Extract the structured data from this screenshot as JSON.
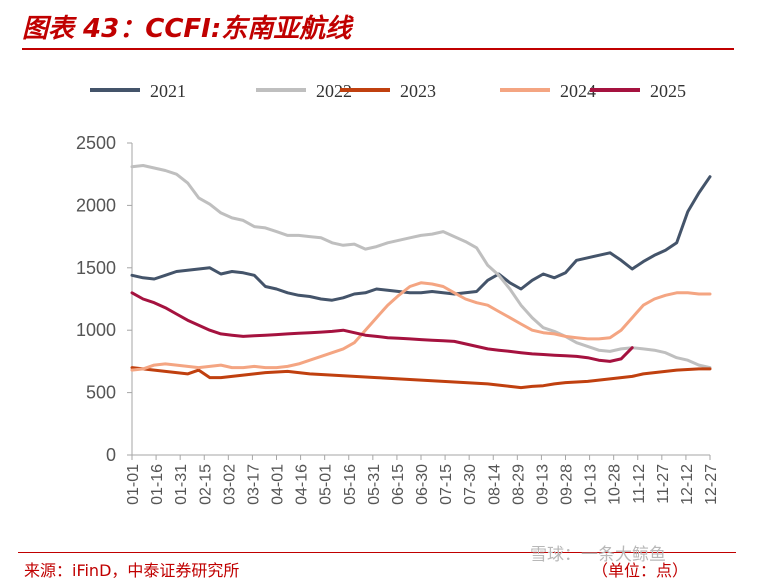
{
  "title": "图表 43：CCFI:东南亚航线",
  "source": "来源：iFinD，中泰证券研究所",
  "unit": "（单位：点）",
  "watermark": "雪球：一条大鲸鱼",
  "chart_data": {
    "type": "line",
    "title": "图表 43：CCFI:东南亚航线",
    "xlabel": "",
    "ylabel": "",
    "ylim": [
      0,
      2500
    ],
    "yticks": [
      0,
      500,
      1000,
      1500,
      2000,
      2500
    ],
    "x_range": [
      0,
      52
    ],
    "x_tick_labels": [
      "01-01",
      "01-16",
      "01-31",
      "02-15",
      "03-02",
      "03-17",
      "04-01",
      "04-16",
      "05-01",
      "05-16",
      "05-31",
      "06-15",
      "06-30",
      "07-15",
      "07-30",
      "08-14",
      "08-29",
      "09-13",
      "09-28",
      "10-13",
      "10-28",
      "11-12",
      "11-27",
      "12-12",
      "12-27"
    ],
    "legend_position": "top",
    "grid": false,
    "series": [
      {
        "name": "2021",
        "color": "#44546a",
        "x": [
          0,
          1,
          2,
          3,
          4,
          5,
          6,
          7,
          8,
          9,
          10,
          11,
          12,
          13,
          14,
          15,
          16,
          17,
          18,
          19,
          20,
          21,
          22,
          23,
          24,
          25,
          26,
          27,
          28,
          29,
          30,
          31,
          32,
          33,
          34,
          35,
          36,
          37,
          38,
          39,
          40,
          41,
          42,
          43,
          44,
          45,
          46,
          47,
          48,
          49,
          50,
          51,
          52
        ],
        "values": [
          1440,
          1420,
          1410,
          1440,
          1470,
          1480,
          1490,
          1500,
          1450,
          1470,
          1460,
          1440,
          1350,
          1330,
          1300,
          1280,
          1270,
          1250,
          1240,
          1260,
          1290,
          1300,
          1330,
          1320,
          1310,
          1300,
          1300,
          1310,
          1300,
          1290,
          1300,
          1310,
          1400,
          1450,
          1380,
          1330,
          1400,
          1450,
          1420,
          1460,
          1560,
          1580,
          1600,
          1620,
          1560,
          1490,
          1550,
          1600,
          1640,
          1700,
          1950,
          2100,
          2230
        ]
      },
      {
        "name": "2022",
        "color": "#bfbfbf",
        "x": [
          0,
          1,
          2,
          3,
          4,
          5,
          6,
          7,
          8,
          9,
          10,
          11,
          12,
          13,
          14,
          15,
          16,
          17,
          18,
          19,
          20,
          21,
          22,
          23,
          24,
          25,
          26,
          27,
          28,
          29,
          30,
          31,
          32,
          33,
          34,
          35,
          36,
          37,
          38,
          39,
          40,
          41,
          42,
          43,
          44,
          45,
          46,
          47,
          48,
          49,
          50,
          51,
          52
        ],
        "values": [
          2310,
          2320,
          2300,
          2280,
          2250,
          2180,
          2060,
          2010,
          1940,
          1900,
          1880,
          1830,
          1820,
          1790,
          1760,
          1760,
          1750,
          1740,
          1700,
          1680,
          1690,
          1650,
          1670,
          1700,
          1720,
          1740,
          1760,
          1770,
          1790,
          1750,
          1710,
          1660,
          1520,
          1440,
          1330,
          1200,
          1100,
          1020,
          990,
          950,
          900,
          870,
          840,
          830,
          850,
          860,
          850,
          840,
          820,
          780,
          760,
          720,
          700
        ]
      },
      {
        "name": "2023",
        "color": "#c0400f",
        "x": [
          0,
          1,
          2,
          3,
          4,
          5,
          6,
          7,
          8,
          9,
          10,
          11,
          12,
          13,
          14,
          15,
          16,
          17,
          18,
          19,
          20,
          21,
          22,
          23,
          24,
          25,
          26,
          27,
          28,
          29,
          30,
          31,
          32,
          33,
          34,
          35,
          36,
          37,
          38,
          39,
          40,
          41,
          42,
          43,
          44,
          45,
          46,
          47,
          48,
          49,
          50,
          51,
          52
        ],
        "values": [
          700,
          690,
          680,
          670,
          660,
          650,
          680,
          620,
          620,
          630,
          640,
          650,
          660,
          665,
          670,
          660,
          650,
          645,
          640,
          635,
          630,
          625,
          620,
          615,
          610,
          605,
          600,
          595,
          590,
          585,
          580,
          575,
          570,
          560,
          550,
          540,
          550,
          555,
          570,
          580,
          585,
          590,
          600,
          610,
          620,
          630,
          650,
          660,
          670,
          680,
          685,
          690,
          690
        ]
      },
      {
        "name": "2024",
        "color": "#f4a582",
        "x": [
          0,
          1,
          2,
          3,
          4,
          5,
          6,
          7,
          8,
          9,
          10,
          11,
          12,
          13,
          14,
          15,
          16,
          17,
          18,
          19,
          20,
          21,
          22,
          23,
          24,
          25,
          26,
          27,
          28,
          29,
          30,
          31,
          32,
          33,
          34,
          35,
          36,
          37,
          38,
          39,
          40,
          41,
          42,
          43,
          44,
          45,
          46,
          47,
          48,
          49,
          50,
          51,
          52
        ],
        "values": [
          680,
          690,
          720,
          730,
          720,
          710,
          700,
          710,
          720,
          700,
          700,
          710,
          700,
          700,
          710,
          730,
          760,
          790,
          820,
          850,
          900,
          1000,
          1100,
          1200,
          1280,
          1350,
          1380,
          1370,
          1350,
          1300,
          1250,
          1220,
          1200,
          1150,
          1100,
          1050,
          1000,
          980,
          970,
          950,
          940,
          930,
          930,
          940,
          1000,
          1100,
          1200,
          1250,
          1280,
          1300,
          1300,
          1290,
          1290
        ]
      },
      {
        "name": "2025",
        "color": "#a5123f",
        "x": [
          0,
          1,
          2,
          3,
          4,
          5,
          6,
          7,
          8,
          9,
          10,
          11,
          12,
          13,
          14,
          15,
          16,
          17,
          18,
          19,
          20,
          21,
          22,
          23,
          24,
          25,
          26,
          27,
          28,
          29,
          30,
          31,
          32,
          33,
          34,
          35,
          36,
          37,
          38,
          39,
          40,
          41,
          42,
          43,
          44,
          45
        ],
        "values": [
          1300,
          1250,
          1220,
          1180,
          1130,
          1080,
          1040,
          1000,
          970,
          960,
          950,
          955,
          960,
          965,
          970,
          975,
          980,
          985,
          990,
          1000,
          980,
          960,
          950,
          940,
          935,
          930,
          925,
          920,
          915,
          910,
          890,
          870,
          850,
          840,
          830,
          820,
          810,
          805,
          800,
          795,
          790,
          780,
          760,
          750,
          770,
          860
        ]
      }
    ]
  }
}
